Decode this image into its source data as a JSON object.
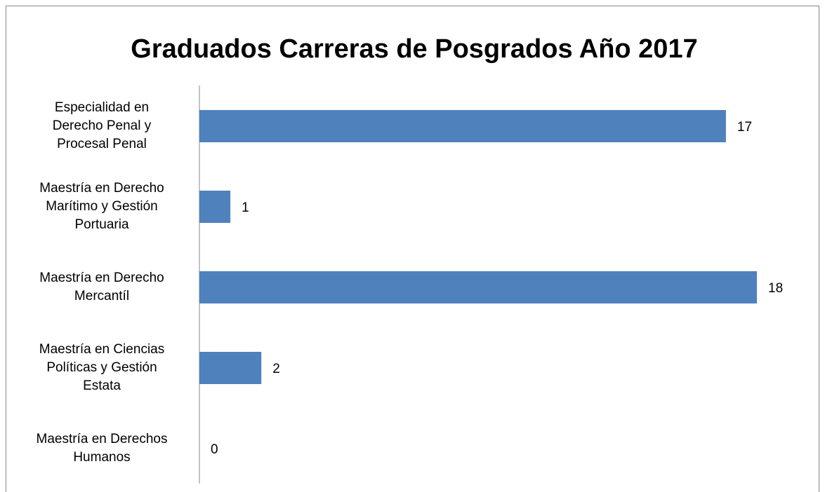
{
  "chart_data": {
    "type": "hbar",
    "title": "Graduados Carreras de Posgrados Año 2017",
    "categories": [
      [
        "Especialidad en",
        "Derecho Penal y",
        "Procesal Penal"
      ],
      [
        "Maestría en Derecho",
        "Marítimo y Gestión",
        "Portuaria"
      ],
      [
        "Maestría en Derecho",
        "Mercantíl"
      ],
      [
        "Maestría en Ciencias",
        "Políticas y  Gestión",
        "Estata"
      ],
      [
        "Maestría en Derechos",
        "Humanos"
      ]
    ],
    "values": [
      17,
      1,
      18,
      2,
      0
    ],
    "color": "#4f81bd",
    "xlim": [
      0,
      18
    ]
  }
}
